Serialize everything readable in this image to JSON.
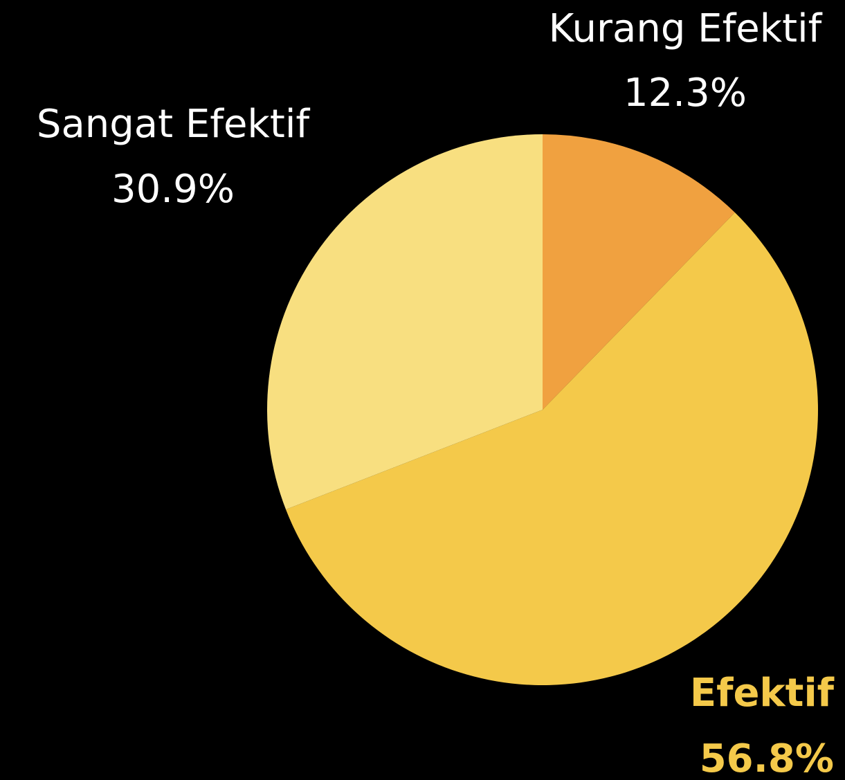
{
  "chart_data": {
    "type": "pie",
    "categories": [
      "Kurang Efektif",
      "Efektif",
      "Sangat Efektif"
    ],
    "values": [
      12.3,
      56.8,
      30.9
    ],
    "value_labels": [
      "12.3%",
      "56.8%",
      "30.9%"
    ],
    "colors": [
      "#f0a140",
      "#f4c94a",
      "#f8df80"
    ],
    "label_colors": [
      "#ffffff",
      "#f4c94a",
      "#ffffff"
    ],
    "label_bold": [
      false,
      true,
      false
    ]
  }
}
